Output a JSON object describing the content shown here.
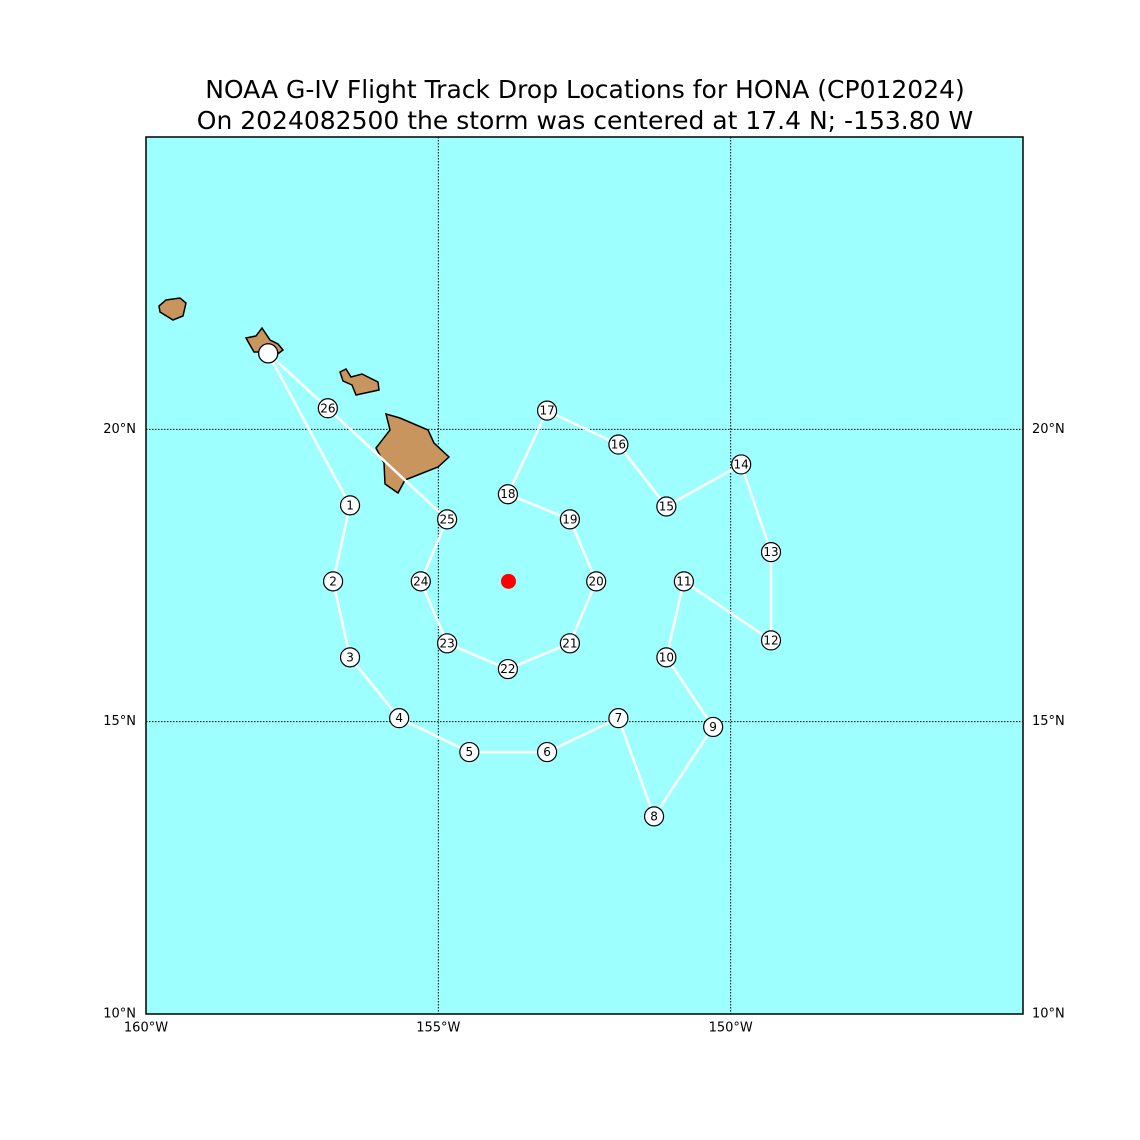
{
  "chart_data": {
    "type": "map",
    "title": "NOAA G-IV Flight Track Drop Locations for HONA (CP012024)",
    "subtitle": "On 2024082500 the storm was centered at 17.4 N; -153.80 W",
    "xlim": [
      -160,
      -145
    ],
    "ylim": [
      10,
      25
    ],
    "xticks": [
      {
        "value": -160,
        "label": "160°W"
      },
      {
        "value": -155,
        "label": "155°W"
      },
      {
        "value": -150,
        "label": "150°W"
      }
    ],
    "yticks": [
      {
        "value": 10,
        "label": "10°N"
      },
      {
        "value": 15,
        "label": "15°N"
      },
      {
        "value": 20,
        "label": "20°N"
      }
    ],
    "grid": true,
    "track": {
      "color": "#ffffff",
      "x": [
        -157.91,
        -156.51,
        -156.8,
        -156.51,
        -155.67,
        -154.47,
        -153.14,
        -151.92,
        -151.31,
        -150.3,
        -151.1,
        -150.8,
        -149.31,
        -149.31,
        -149.82,
        -151.1,
        -151.92,
        -153.14,
        -153.81,
        -152.75,
        -152.3,
        -152.75,
        -153.81,
        -154.85,
        -155.3,
        -154.85,
        -156.89,
        -157.91
      ],
      "y": [
        21.3,
        18.7,
        17.4,
        16.1,
        15.06,
        14.48,
        14.48,
        15.06,
        13.38,
        14.91,
        16.1,
        17.4,
        16.39,
        17.9,
        19.4,
        18.68,
        19.74,
        20.32,
        18.89,
        18.46,
        17.4,
        16.34,
        15.9,
        16.34,
        17.4,
        18.46,
        20.36,
        21.3
      ],
      "labels": [
        null,
        "1",
        "2",
        "3",
        "4",
        "5",
        "6",
        "7",
        "8",
        "9",
        "10",
        "11",
        "12",
        "13",
        "14",
        "15",
        "16",
        "17",
        "18",
        "19",
        "20",
        "21",
        "22",
        "23",
        "24",
        "25",
        "26",
        null
      ]
    },
    "storm": {
      "color": "#ff0000",
      "x": -153.8,
      "y": 17.4
    }
  }
}
